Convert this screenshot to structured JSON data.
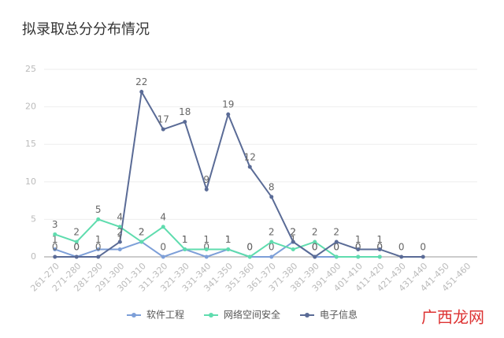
{
  "chart_data": {
    "type": "line",
    "title": "拟录取总分分布情况",
    "categories": [
      "261-270",
      "271-280",
      "281-290",
      "291-300",
      "301-310",
      "311-320",
      "321-330",
      "331-340",
      "341-350",
      "351-360",
      "361-370",
      "371-380",
      "381-390",
      "391-400",
      "401-410",
      "411-420",
      "421-430",
      "431-440",
      "441-450",
      "451-460"
    ],
    "series": [
      {
        "name": "软件工程",
        "color": "#7d9fd8",
        "values": [
          1,
          0,
          1,
          1,
          2,
          0,
          1,
          0,
          1,
          0,
          0,
          2,
          0,
          0,
          0,
          0,
          null,
          null,
          null,
          null
        ]
      },
      {
        "name": "网络空间安全",
        "color": "#5fdcae",
        "values": [
          3,
          2,
          5,
          4,
          2,
          4,
          1,
          1,
          1,
          0,
          2,
          1,
          2,
          0,
          0,
          0,
          null,
          null,
          null,
          null
        ]
      },
      {
        "name": "电子信息",
        "color": "#5a6b96",
        "values": [
          0,
          0,
          0,
          2,
          22,
          17,
          18,
          9,
          19,
          12,
          8,
          2,
          0,
          2,
          1,
          1,
          0,
          0,
          null,
          null
        ]
      }
    ],
    "ylim": [
      0,
      25
    ],
    "yticks": [
      0,
      5,
      10,
      15,
      20,
      25
    ],
    "grid": true,
    "legend": "bottom",
    "watermark": "广西龙网"
  }
}
